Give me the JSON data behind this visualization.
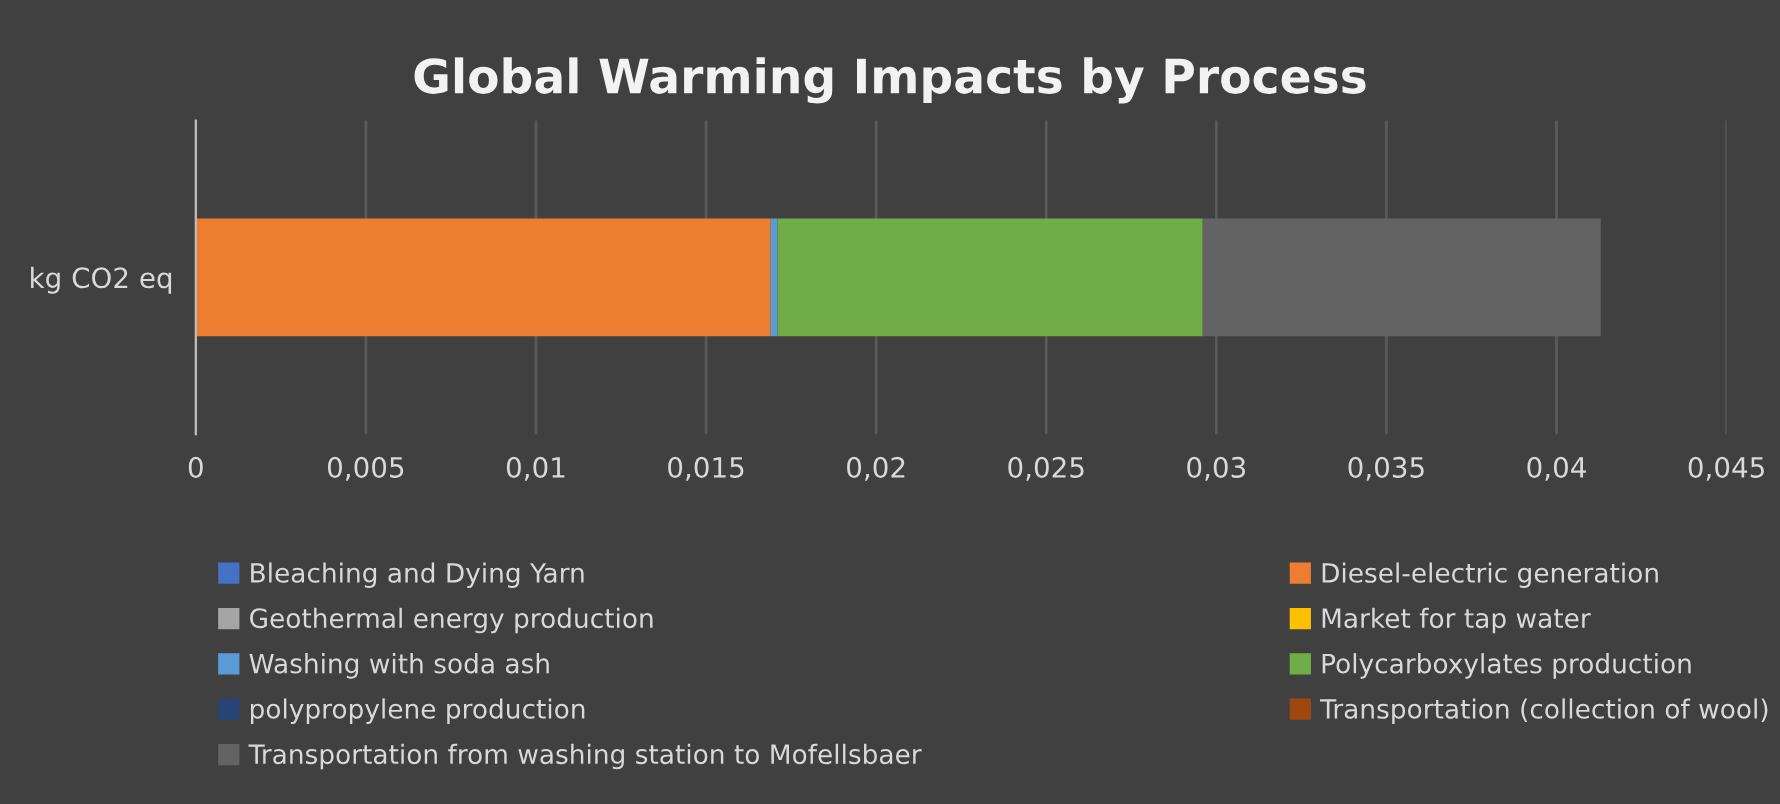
{
  "chart_data": {
    "type": "bar",
    "orientation": "horizontal",
    "stacked": true,
    "title": "Global Warming Impacts by Process",
    "categories": [
      "kg CO2 eq"
    ],
    "series": [
      {
        "name": "Bleaching and Dying Yarn",
        "color": "#4472c4",
        "values": [
          0
        ]
      },
      {
        "name": "Diesel-electric generation",
        "color": "#ed7d31",
        "values": [
          0.0169
        ]
      },
      {
        "name": "Geothermal energy production",
        "color": "#a5a5a5",
        "values": [
          0
        ]
      },
      {
        "name": "Market for tap water",
        "color": "#ffc000",
        "values": [
          0
        ]
      },
      {
        "name": "Washing with soda ash",
        "color": "#5b9bd5",
        "values": [
          0.0002
        ]
      },
      {
        "name": "Polycarboxylates production",
        "color": "#70ad47",
        "values": [
          0.0125
        ]
      },
      {
        "name": "polypropylene production",
        "color": "#264478",
        "values": [
          0
        ]
      },
      {
        "name": "Transportation (collection of wool)",
        "color": "#9e480e",
        "values": [
          0
        ]
      },
      {
        "name": "Transportation from washing station to Mofellsbaer",
        "color": "#636363",
        "values": [
          0.0117
        ]
      }
    ],
    "xlim": [
      0,
      0.045
    ],
    "xticks": [
      0,
      {
        "value": 0.005,
        "label": "0,005"
      },
      {
        "value": 0.01,
        "label": "0,01"
      },
      {
        "value": 0.015,
        "label": "0,015"
      },
      {
        "value": 0.02,
        "label": "0,02"
      },
      {
        "value": 0.025,
        "label": "0,025"
      },
      {
        "value": 0.03,
        "label": "0,03"
      },
      {
        "value": 0.035,
        "label": "0,035"
      },
      {
        "value": 0.04,
        "label": "0,04"
      },
      {
        "value": 0.045,
        "label": "0,045"
      }
    ],
    "grid": "x",
    "legend": "bottom"
  }
}
